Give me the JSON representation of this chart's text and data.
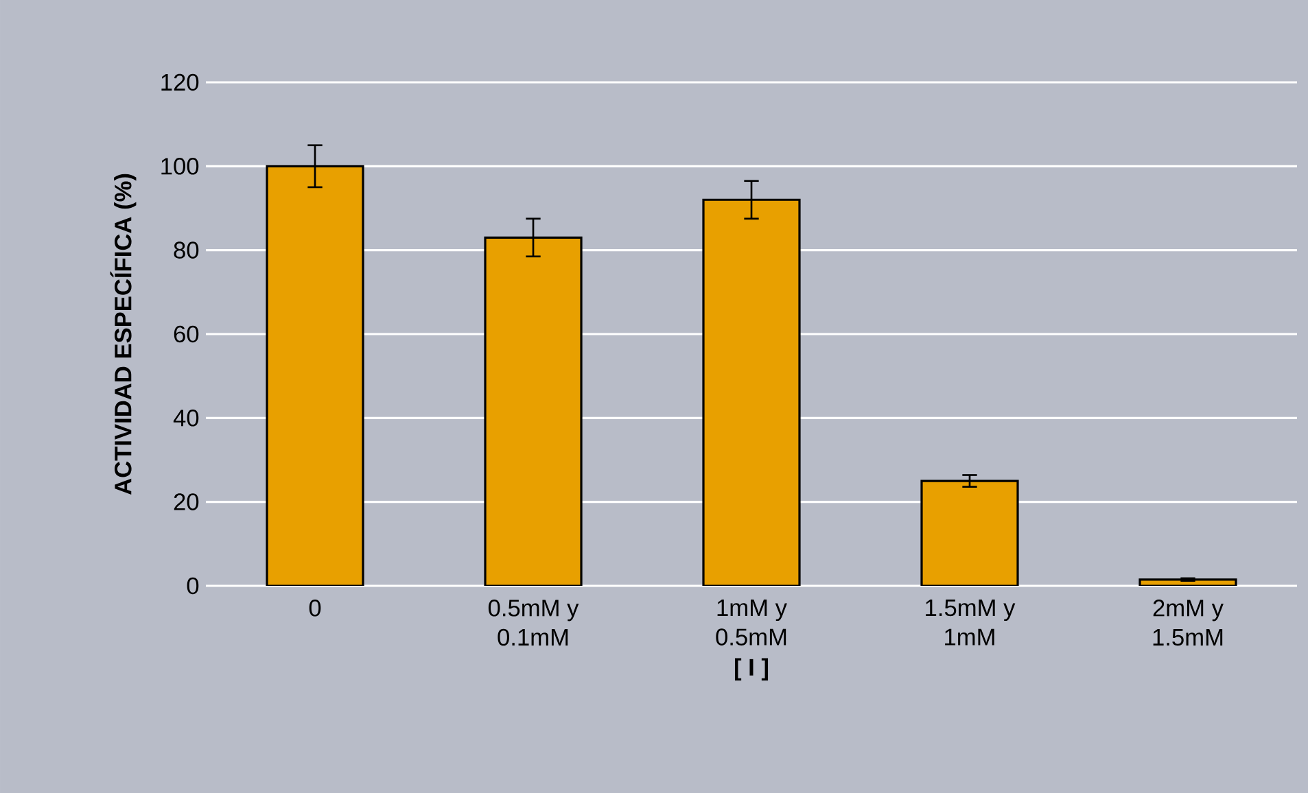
{
  "chart_data": {
    "type": "bar",
    "xlabel": "[ I ]",
    "ylabel": "ACTIVIDAD ESPECÍFICA (%)",
    "categories": [
      "0",
      "0.5mM y 0.1mM",
      "1mM y 0.5mM",
      "1.5mM y 1mM",
      "2mM y 1.5mM"
    ],
    "values": [
      100,
      83,
      92,
      25,
      1.5
    ],
    "errors": [
      5,
      4.5,
      4.5,
      1.4,
      0.3
    ],
    "color": "#e8a000",
    "ylim": [
      0,
      120
    ],
    "yticks": [
      0,
      20,
      40,
      60,
      80,
      100,
      120
    ],
    "grid": "y"
  }
}
